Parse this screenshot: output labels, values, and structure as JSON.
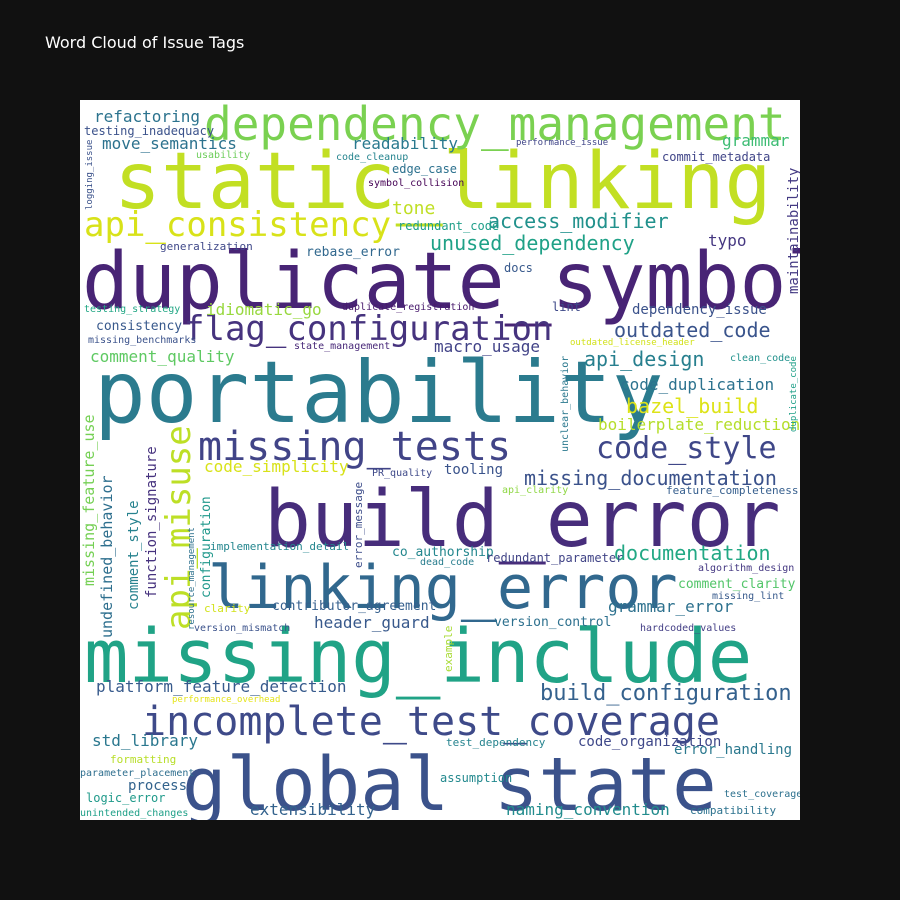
{
  "chart_data": {
    "type": "wordcloud",
    "title": "Word Cloud of Issue Tags",
    "words": [
      {
        "text": "static_linking",
        "color": "#c2df23"
      },
      {
        "text": "duplicate_symbol",
        "color": "#482475"
      },
      {
        "text": "portability",
        "color": "#2b7b8e"
      },
      {
        "text": "build_error",
        "color": "#472d7b"
      },
      {
        "text": "missing_include",
        "color": "#20a386"
      },
      {
        "text": "global_state",
        "color": "#3b528b"
      },
      {
        "text": "linking_error",
        "color": "#31688e"
      },
      {
        "text": "incomplete_test_coverage",
        "color": "#3e4a89"
      },
      {
        "text": "missing_tests",
        "color": "#414487"
      },
      {
        "text": "dependency_management",
        "color": "#7ad151"
      },
      {
        "text": "api_consistency",
        "color": "#d8e219"
      },
      {
        "text": "flag_configuration",
        "color": "#46337e"
      },
      {
        "text": "api_misuse",
        "color": "#bddf26"
      },
      {
        "text": "code_style",
        "color": "#3f4788"
      },
      {
        "text": "build_configuration",
        "color": "#34618d"
      },
      {
        "text": "missing_documentation",
        "color": "#3b528b"
      },
      {
        "text": "documentation",
        "color": "#22a884"
      },
      {
        "text": "outdated_code",
        "color": "#3a548c"
      },
      {
        "text": "api_design",
        "color": "#277f8e"
      },
      {
        "text": "bazel_build",
        "color": "#dde318"
      },
      {
        "text": "access_modifier",
        "color": "#21918c"
      },
      {
        "text": "unused_dependency",
        "color": "#1fa187"
      },
      {
        "text": "platform_feature_detection",
        "color": "#375a8c"
      },
      {
        "text": "naming_convention",
        "color": "#228c8d"
      },
      {
        "text": "grammar_error",
        "color": "#2d718e"
      },
      {
        "text": "header_guard",
        "color": "#38598c"
      },
      {
        "text": "missing_feature_use",
        "color": "#75d054"
      },
      {
        "text": "undefined_behavior",
        "color": "#2e6f8e"
      },
      {
        "text": "std_library",
        "color": "#2a778e"
      },
      {
        "text": "extensibility",
        "color": "#33628d"
      },
      {
        "text": "move_semantics",
        "color": "#2c728e"
      },
      {
        "text": "readability",
        "color": "#29798e"
      },
      {
        "text": "refactoring",
        "color": "#2c738e"
      },
      {
        "text": "tone",
        "color": "#c0df25"
      },
      {
        "text": "grammar",
        "color": "#3dbc74"
      },
      {
        "text": "typo",
        "color": "#453781"
      },
      {
        "text": "maintainability",
        "color": "#443a83"
      },
      {
        "text": "boilerplate_reduction",
        "color": "#b5de2b"
      },
      {
        "text": "code_duplication",
        "color": "#2c728e"
      },
      {
        "text": "macro_usage",
        "color": "#414287"
      },
      {
        "text": "comment_quality",
        "color": "#5ec962"
      },
      {
        "text": "code_simplicity",
        "color": "#d8e219"
      },
      {
        "text": "comment_style",
        "color": "#26828e"
      },
      {
        "text": "function_signature",
        "color": "#46327e"
      },
      {
        "text": "dependency_issue",
        "color": "#3b528b"
      },
      {
        "text": "idiomatic_go",
        "color": "#98d83e"
      },
      {
        "text": "tooling",
        "color": "#3a538b"
      },
      {
        "text": "code_organization",
        "color": "#3f4889"
      },
      {
        "text": "error_handling",
        "color": "#2a788e"
      },
      {
        "text": "comment_clarity",
        "color": "#52c569"
      },
      {
        "text": "configuration",
        "color": "#1f988b"
      },
      {
        "text": "process",
        "color": "#33638d"
      },
      {
        "text": "consistency",
        "color": "#38598c"
      },
      {
        "text": "rebase_error",
        "color": "#31688e"
      },
      {
        "text": "co_authorship",
        "color": "#24878e"
      },
      {
        "text": "version_control",
        "color": "#2d708e"
      },
      {
        "text": "contributor_agreement",
        "color": "#355f8d"
      },
      {
        "text": "docs",
        "color": "#38598c"
      },
      {
        "text": "lint",
        "color": "#3e4989"
      },
      {
        "text": "logic_error",
        "color": "#1f9a8a"
      },
      {
        "text": "redundant_code",
        "color": "#1f9e89"
      },
      {
        "text": "edge_case",
        "color": "#2c718e"
      },
      {
        "text": "testing_inadequacy",
        "color": "#3b528b"
      },
      {
        "text": "example",
        "color": "#a8db34"
      },
      {
        "text": "redundant_parameter",
        "color": "#414487"
      },
      {
        "text": "implementation_detail",
        "color": "#24868e"
      },
      {
        "text": "formatting",
        "color": "#b8de29"
      },
      {
        "text": "commit_metadata",
        "color": "#404588"
      },
      {
        "text": "parameter_placement",
        "color": "#2e6e8e"
      },
      {
        "text": "feature_completeness",
        "color": "#355e8d"
      },
      {
        "text": "unintended_changes",
        "color": "#1fa088"
      },
      {
        "text": "assumption",
        "color": "#23898e"
      },
      {
        "text": "error_message",
        "color": "#3d4d8a"
      },
      {
        "text": "generalization",
        "color": "#3f4889"
      },
      {
        "text": "testing_strategy",
        "color": "#22a785"
      },
      {
        "text": "test_dependency",
        "color": "#25838e"
      },
      {
        "text": "symbol_collision",
        "color": "#440154"
      },
      {
        "text": "duplicate_registration",
        "color": "#481a6c"
      },
      {
        "text": "state_management",
        "color": "#482878"
      },
      {
        "text": "missing_benchmarks",
        "color": "#3b528b"
      },
      {
        "text": "algorithm_design",
        "color": "#453882"
      },
      {
        "text": "hardcoded_values",
        "color": "#433e85"
      },
      {
        "text": "compatibility",
        "color": "#2c728e"
      },
      {
        "text": "test_coverage",
        "color": "#2d718e"
      },
      {
        "text": "code_cleanup",
        "color": "#25848e"
      },
      {
        "text": "usability",
        "color": "#6ccd5a"
      },
      {
        "text": "logging_issue",
        "color": "#3b528b"
      },
      {
        "text": "performance_issue",
        "color": "#404588"
      },
      {
        "text": "clean_code",
        "color": "#21918c"
      },
      {
        "text": "duplicate_code",
        "color": "#1fa088"
      },
      {
        "text": "unclear_behavior",
        "color": "#2a788e"
      },
      {
        "text": "api_clarity",
        "color": "#8fd744"
      },
      {
        "text": "PR_quality",
        "color": "#3e4989"
      },
      {
        "text": "outdated_license_header",
        "color": "#d2e21b"
      },
      {
        "text": "missing_lint",
        "color": "#375a8c"
      },
      {
        "text": "resource_management",
        "color": "#2d718e"
      },
      {
        "text": "dead_code",
        "color": "#287d8e"
      },
      {
        "text": "clarity",
        "color": "#d2e21b"
      },
      {
        "text": "version_mismatch",
        "color": "#3b528b"
      },
      {
        "text": "performance_overhead",
        "color": "#e5e419"
      }
    ]
  }
}
